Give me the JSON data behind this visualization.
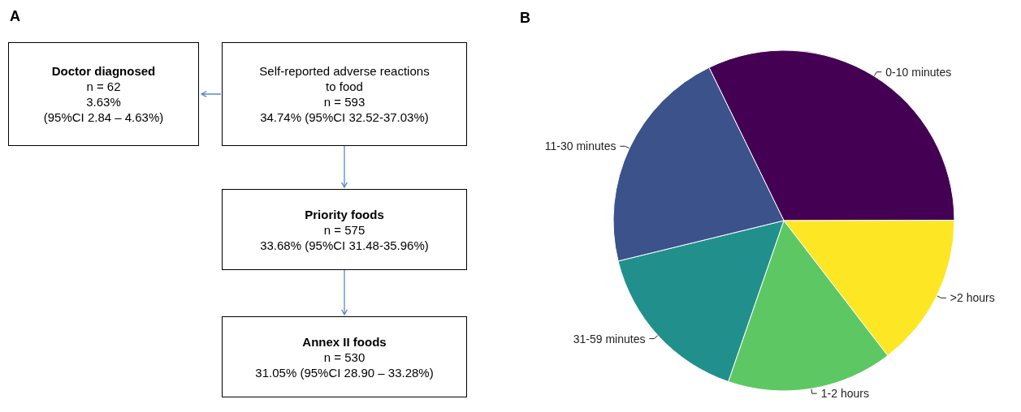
{
  "chart_data": [
    {
      "type": "other",
      "title": "A",
      "annotations": [
        "Doctor diagnosed\nn = 62\n3.63%\n(95%CI 2.84 – 4.63%)",
        "Self-reported adverse reactions\nto food\nn = 593\n34.74% (95%CI 32.52-37.03%)",
        "Priority foods\nn = 575\n33.68% (95%CI 31.48-35.96%)",
        "Annex II foods\nn = 530\n31.05% (95%CI 28.90 – 33.28%)"
      ]
    },
    {
      "type": "pie",
      "title": "B",
      "categories": [
        "0-10 minutes",
        ">2 hours",
        "1-2 hours",
        "31-59 minutes",
        "11-30 minutes"
      ],
      "values": [
        32.2,
        14.6,
        15.7,
        15.9,
        21.6
      ],
      "colors": [
        "#440154",
        "#fde725",
        "#5dc863",
        "#21908d",
        "#3b528b"
      ]
    }
  ]
}
